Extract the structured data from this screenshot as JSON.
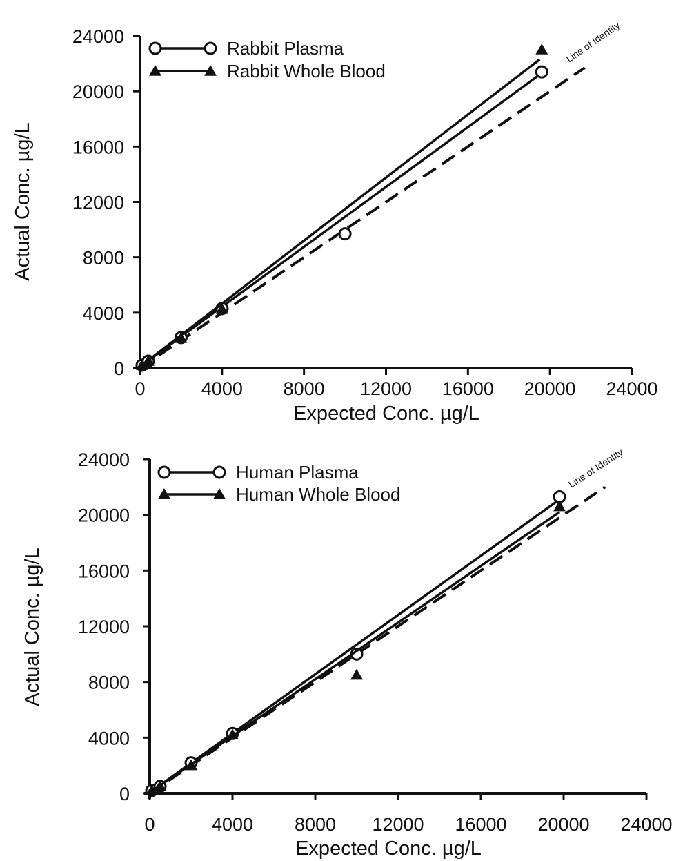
{
  "chart_data": [
    {
      "type": "scatter",
      "title": "",
      "xlabel": "Expected Conc. µg/L",
      "ylabel": "Actual Conc. µg/L",
      "xlim": [
        0,
        24000
      ],
      "ylim": [
        0,
        24000
      ],
      "xticks": [
        "0",
        "4000",
        "8000",
        "12000",
        "16000",
        "20000",
        "24000"
      ],
      "yticks": [
        "0",
        "4000",
        "8000",
        "12000",
        "16000",
        "20000",
        "24000"
      ],
      "grid": false,
      "legend_position": "top-left",
      "identity_line": {
        "label": "Line of Identity",
        "style": "dashed",
        "from": [
          0,
          0
        ],
        "to": [
          21700,
          21700
        ]
      },
      "series": [
        {
          "name": "Rabbit Plasma",
          "marker": "open-circle",
          "points": [
            [
              100,
              200
            ],
            [
              400,
              500
            ],
            [
              2000,
              2200
            ],
            [
              4000,
              4300
            ],
            [
              10000,
              9700
            ],
            [
              19600,
              21400
            ]
          ],
          "fit_line": {
            "from": [
              0,
              100
            ],
            "to": [
              19500,
              21200
            ]
          }
        },
        {
          "name": "Rabbit Whole Blood",
          "marker": "filled-triangle",
          "points": [
            [
              100,
              200
            ],
            [
              400,
              500
            ],
            [
              2000,
              2150
            ],
            [
              4000,
              4250
            ],
            [
              19600,
              23000
            ]
          ],
          "fit_line": {
            "from": [
              0,
              100
            ],
            "to": [
              19500,
              22300
            ]
          }
        }
      ]
    },
    {
      "type": "scatter",
      "title": "",
      "xlabel": "Expected Conc. µg/L",
      "ylabel": "Actual Conc. µg/L",
      "xlim": [
        0,
        24000
      ],
      "ylim": [
        0,
        24000
      ],
      "xticks": [
        "0",
        "4000",
        "8000",
        "12000",
        "16000",
        "20000",
        "24000"
      ],
      "yticks": [
        "0",
        "4000",
        "8000",
        "12000",
        "16000",
        "20000",
        "24000"
      ],
      "grid": false,
      "legend_position": "top-left",
      "identity_line": {
        "label": "Line of Identity",
        "style": "dashed",
        "from": [
          0,
          0
        ],
        "to": [
          22000,
          22000
        ]
      },
      "series": [
        {
          "name": "Human Plasma",
          "marker": "open-circle",
          "points": [
            [
              100,
              200
            ],
            [
              500,
              500
            ],
            [
              2000,
              2200
            ],
            [
              4000,
              4300
            ],
            [
              10000,
              10000
            ],
            [
              19800,
              21300
            ]
          ],
          "fit_line": {
            "from": [
              0,
              50
            ],
            "to": [
              19800,
              21100
            ]
          }
        },
        {
          "name": "Human Whole Blood",
          "marker": "filled-triangle",
          "points": [
            [
              100,
              200
            ],
            [
              500,
              500
            ],
            [
              2000,
              2000
            ],
            [
              4000,
              4200
            ],
            [
              10000,
              8500
            ],
            [
              19800,
              20600
            ]
          ],
          "fit_line": {
            "from": [
              0,
              50
            ],
            "to": [
              19800,
              20200
            ]
          }
        }
      ]
    }
  ]
}
